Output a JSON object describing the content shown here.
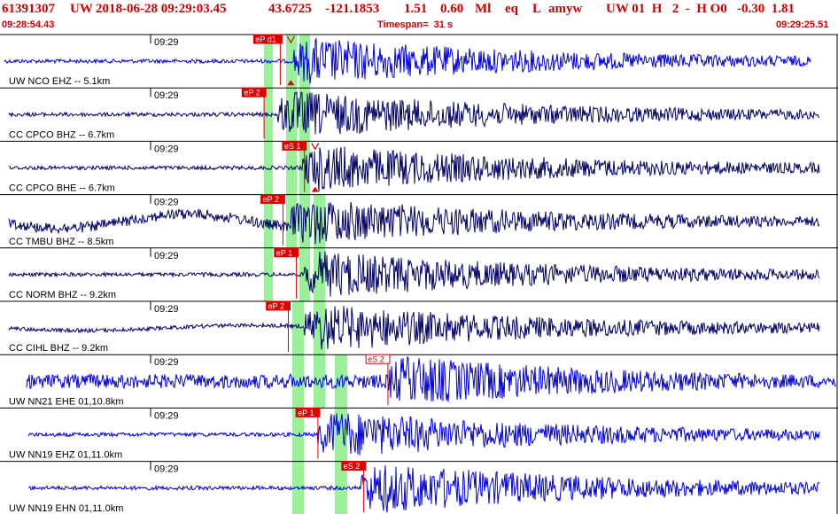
{
  "header": {
    "event_id": "61391307",
    "network": "UW",
    "datetime": "2018-06-28 09:29:03.45",
    "lat": "43.6725",
    "lon": "-121.1853",
    "depth": "1.51",
    "magnitude": "0.60",
    "mag_type": "Ml",
    "event_type": "eq",
    "gtype": "L",
    "author": "amyw",
    "tail": "UW 01  H   2  -  H O0   -0.30  1.81",
    "start_time": "09:28:54.43",
    "timespan": "Timespan=  31 s",
    "end_time": "09:29:25.51"
  },
  "colors": {
    "trace_bright": "#0000dd",
    "trace_dark": "#000066",
    "pick": "#dd0000",
    "pick_band": "#88ee88",
    "header_text": "#d00000"
  },
  "chart_data": {
    "type": "line",
    "title": "",
    "x_unit": "seconds after 09:28:54.43",
    "xlim": [
      0,
      31
    ],
    "time_tick_label": "09:29",
    "channels": [
      {
        "label": "UW NCO EHZ -- 5.1km",
        "style": "bright",
        "onset_s": 11.4,
        "pick": {
          "label": "eP d1",
          "t_s": 10.9,
          "filled": true
        },
        "marker": true
      },
      {
        "label": "CC CPCO BHZ -- 6.7km",
        "style": "dark",
        "onset_s": 10.8,
        "pick": {
          "label": "eP 2",
          "t_s": 10.3,
          "filled": true
        }
      },
      {
        "label": "CC CPCO BHE -- 6.7km",
        "style": "dark",
        "onset_s": 11.7,
        "pick": {
          "label": "eS 1",
          "t_s": 11.8,
          "filled": true
        },
        "marker": true
      },
      {
        "label": "CC TMBU BHZ -- 8.5km",
        "style": "dark",
        "onset_s": 11.3,
        "pick": {
          "label": "eP 2",
          "t_s": 11.0,
          "filled": true
        }
      },
      {
        "label": "CC NORM BHZ -- 9.2km",
        "style": "dark",
        "onset_s": 11.8,
        "pick": {
          "label": "eP 1",
          "t_s": 11.5,
          "filled": true
        }
      },
      {
        "label": "CC CIHL BHZ -- 9.2km",
        "style": "dark",
        "onset_s": 11.8,
        "pick": {
          "label": "eP 2",
          "t_s": 11.2,
          "filled": true
        }
      },
      {
        "label": "UW NN21 EHE 01,10.8km",
        "style": "bright",
        "onset_s": 14.9,
        "pick": {
          "label": "eS 2",
          "t_s": 14.9,
          "filled": false
        }
      },
      {
        "label": "UW NN19 EHZ 01,11.0km",
        "style": "bright",
        "onset_s": 12.3,
        "pick": {
          "label": "eP 1",
          "t_s": 12.3,
          "filled": true
        }
      },
      {
        "label": "UW NN19 EHN 01,11.0km",
        "style": "bright",
        "onset_s": 13.9,
        "pick": {
          "label": "eS 2",
          "t_s": 14.0,
          "filled": true
        }
      }
    ]
  }
}
